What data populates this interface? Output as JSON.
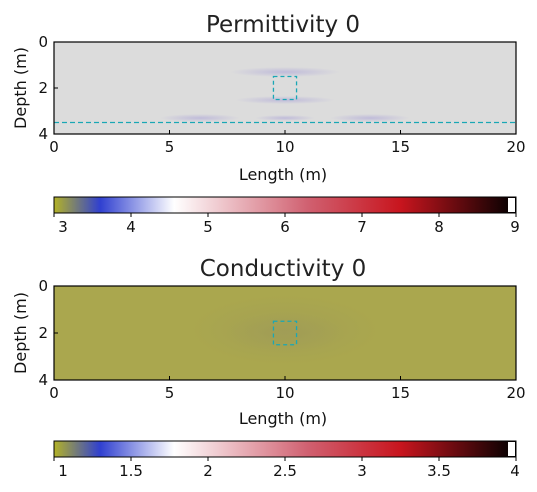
{
  "chart_data": [
    {
      "type": "heatmap",
      "title": "Permittivity 0",
      "xlabel": "Length (m)",
      "ylabel": "Depth (m)",
      "xlim": [
        0,
        20
      ],
      "ylim": [
        4,
        0
      ],
      "xticks": [
        "0",
        "5",
        "10",
        "15",
        "20"
      ],
      "yticks": [
        "0",
        "2",
        "4"
      ],
      "background_value": 4.1,
      "background_color": "#dcdcdc",
      "target_box": {
        "x": [
          9.5,
          10.5
        ],
        "y": [
          1.5,
          2.5
        ]
      },
      "horizontal_line_depth": 3.5,
      "overlay_color": "#1aa7b5",
      "colorbar": {
        "min": 3,
        "max": 9,
        "ticks": [
          "3",
          "4",
          "5",
          "6",
          "7",
          "8",
          "9"
        ],
        "colors": [
          "#b3b227",
          "#3040d0",
          "#ffffff",
          "#d06070",
          "#c8151e",
          "#000000"
        ]
      }
    },
    {
      "type": "heatmap",
      "title": "Conductivity 0",
      "xlabel": "Length (m)",
      "ylabel": "Depth (m)",
      "xlim": [
        0,
        20
      ],
      "ylim": [
        4,
        0
      ],
      "xticks": [
        "0",
        "5",
        "10",
        "15",
        "20"
      ],
      "yticks": [
        "0",
        "2",
        "4"
      ],
      "background_value": 1.0,
      "background_color": "#aaa74e",
      "target_box": {
        "x": [
          9.5,
          10.5
        ],
        "y": [
          1.5,
          2.5
        ]
      },
      "overlay_color": "#1aa7b5",
      "colorbar": {
        "min": 1,
        "max": 4,
        "ticks": [
          "1",
          "1.5",
          "2",
          "2.5",
          "3",
          "3.5",
          "4"
        ],
        "colors": [
          "#b3b227",
          "#3040d0",
          "#ffffff",
          "#d06070",
          "#c8151e",
          "#000000"
        ]
      }
    }
  ]
}
